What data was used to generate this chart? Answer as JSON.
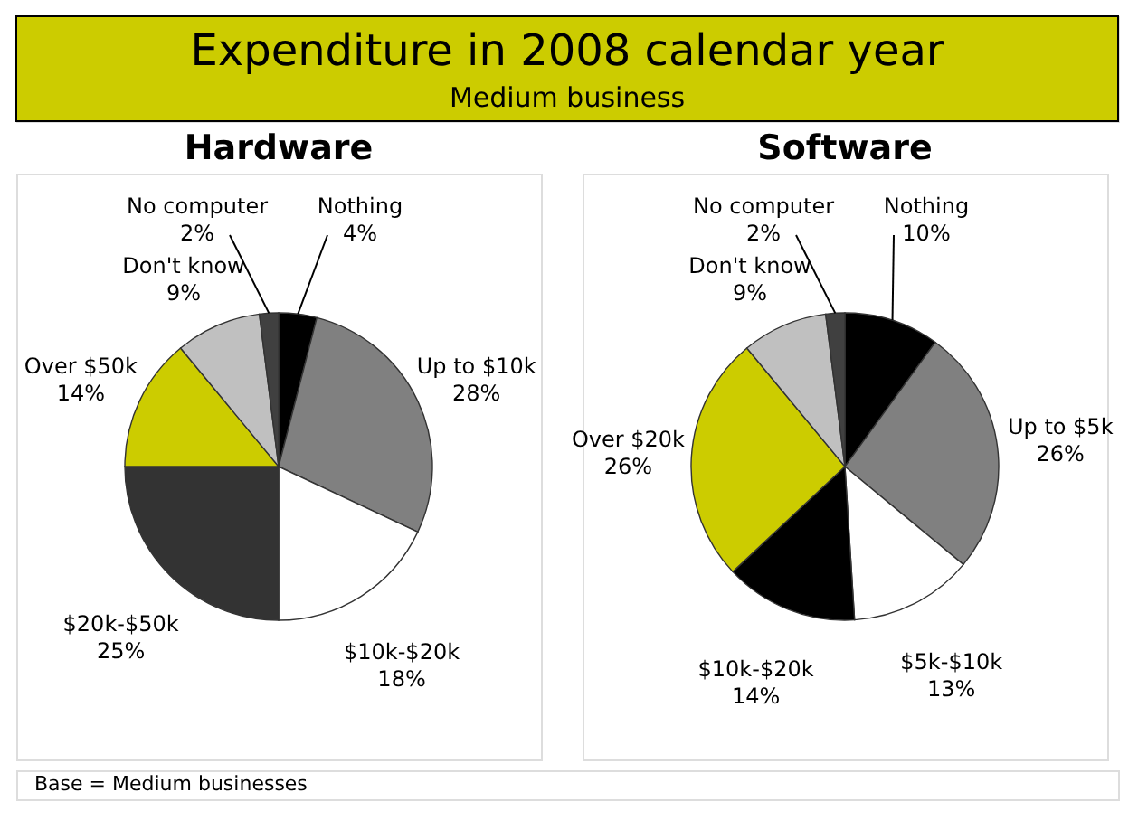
{
  "chart_data": [
    {
      "type": "other",
      "title": "Expenditure in 2008 calendar year",
      "subtitle": "Medium business",
      "annotations": [
        "Base = Medium businesses"
      ]
    },
    {
      "type": "pie",
      "title": "Hardware",
      "categories": [
        "Nothing",
        "Up to $10k",
        "$10k-$20k",
        "$20k-$50k",
        "Over $50k",
        "Don't know",
        "No computer"
      ],
      "values": [
        4,
        28,
        18,
        25,
        14,
        9,
        2
      ],
      "colors": [
        "#000000",
        "#808080",
        "#ffffff",
        "#333333",
        "#cccc00",
        "#c0c0c0",
        "#404040"
      ],
      "value_labels": [
        "4%",
        "28%",
        "18%",
        "25%",
        "14%",
        "9%",
        "2%"
      ]
    },
    {
      "type": "pie",
      "title": "Software",
      "categories": [
        "Nothing",
        "Up to $5k",
        "$5k-$10k",
        "$10k-$20k",
        "Over $20k",
        "Don't know",
        "No computer"
      ],
      "values": [
        10,
        26,
        13,
        14,
        26,
        9,
        2
      ],
      "colors": [
        "#000000",
        "#808080",
        "#ffffff",
        "#000000",
        "#cccc00",
        "#c0c0c0",
        "#404040"
      ],
      "value_labels": [
        "10%",
        "26%",
        "13%",
        "14%",
        "26%",
        "9%",
        "2%"
      ]
    }
  ]
}
